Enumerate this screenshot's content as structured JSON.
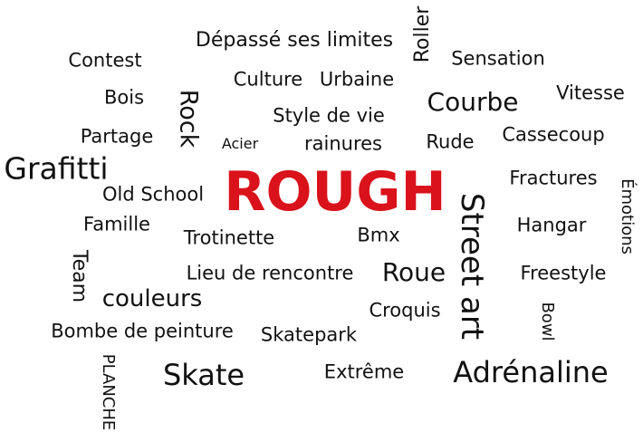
{
  "accent_color": "#d9121b",
  "text_color": "#111111",
  "words": {
    "rough": "ROUGH",
    "depasse": "Dépassé ses limites",
    "roller": "Roller",
    "contest": "Contest",
    "sensation": "Sensation",
    "culture": "Culture",
    "urbaine": "Urbaine",
    "bois": "Bois",
    "rock": "Rock",
    "courbe": "Courbe",
    "vitesse": "Vitesse",
    "style": "Style de vie",
    "partage": "Partage",
    "acier": "Acier",
    "rainures": "rainures",
    "rude": "Rude",
    "cassecoup": "Cassecoup",
    "grafitti": "Grafitti",
    "fractures": "Fractures",
    "emotions": "Émotions",
    "old_school": "Old School",
    "street_art": "Street art",
    "famille": "Famille",
    "hangar": "Hangar",
    "trotinette": "Trotinette",
    "bmx": "Bmx",
    "team": "Team",
    "lieu": "Lieu de rencontre",
    "roue": "Roue",
    "freestyle": "Freestyle",
    "couleurs": "couleurs",
    "croquis": "Croquis",
    "bowl": "Bowl",
    "bombe": "Bombe de peinture",
    "skatepark": "Skatepark",
    "planche": "PLANCHE",
    "skate": "Skate",
    "extreme": "Extrême",
    "adrenaline": "Adrénaline"
  }
}
